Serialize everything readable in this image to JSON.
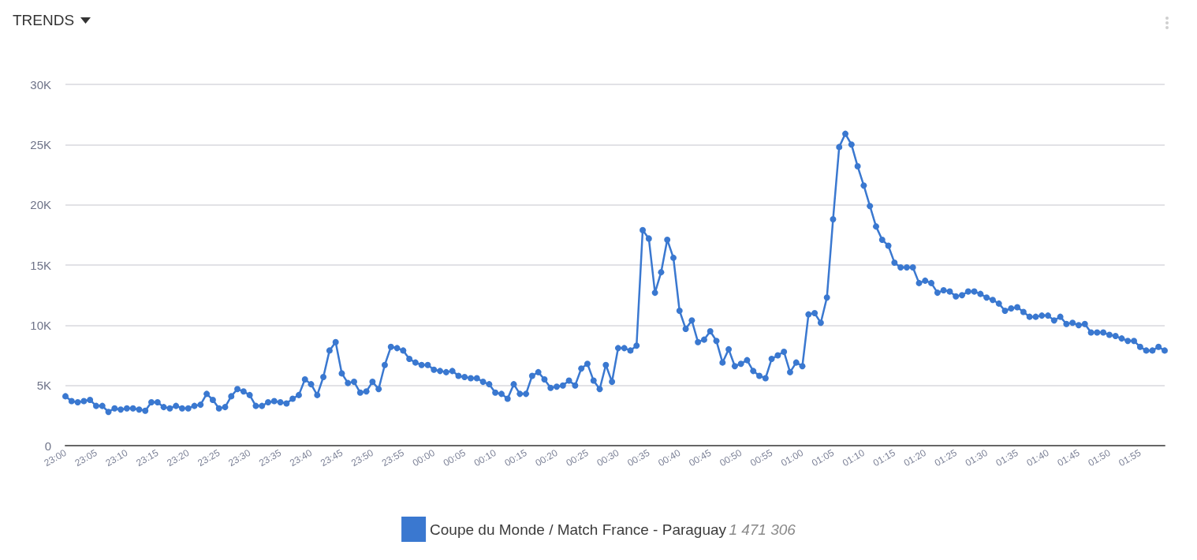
{
  "chart_data": {
    "type": "line",
    "title": "TRENDS",
    "categories": [
      "23:00",
      null,
      null,
      null,
      null,
      "23:05",
      null,
      null,
      null,
      null,
      "23:10",
      null,
      null,
      null,
      null,
      "23:15",
      null,
      null,
      null,
      null,
      "23:20",
      null,
      null,
      null,
      null,
      "23:25",
      null,
      null,
      null,
      null,
      "23:30",
      null,
      null,
      null,
      null,
      "23:35",
      null,
      null,
      null,
      null,
      "23:40",
      null,
      null,
      null,
      null,
      "23:45",
      null,
      null,
      null,
      null,
      "23:50",
      null,
      null,
      null,
      null,
      "23:55",
      null,
      null,
      null,
      null,
      "00:00",
      null,
      null,
      null,
      null,
      "00:05",
      null,
      null,
      null,
      null,
      "00:10",
      null,
      null,
      null,
      null,
      "00:15",
      null,
      null,
      null,
      null,
      "00:20",
      null,
      null,
      null,
      null,
      "00:25",
      null,
      null,
      null,
      null,
      "00:30",
      null,
      null,
      null,
      null,
      "00:35",
      null,
      null,
      null,
      null,
      "00:40",
      null,
      null,
      null,
      null,
      "00:45",
      null,
      null,
      null,
      null,
      "00:50",
      null,
      null,
      null,
      null,
      "00:55",
      null,
      null,
      null,
      null,
      "01:00",
      null,
      null,
      null,
      null,
      "01:05",
      null,
      null,
      null,
      null,
      "01:10",
      null,
      null,
      null,
      null,
      "01:15",
      null,
      null,
      null,
      null,
      "01:20",
      null,
      null,
      null,
      null,
      "01:25",
      null,
      null,
      null,
      null,
      "01:30",
      null,
      null,
      null,
      null,
      "01:35",
      null,
      null,
      null,
      null,
      "01:40",
      null,
      null,
      null,
      null,
      "01:45",
      null,
      null,
      null,
      null,
      "01:50",
      null,
      null,
      null,
      null,
      "01:55",
      null,
      null,
      null,
      null
    ],
    "series": [
      {
        "name": "Coupe du Monde / Match France - Paraguay",
        "color": "#3a78d0",
        "values": [
          4100,
          3700,
          3600,
          3700,
          3800,
          3300,
          3300,
          2800,
          3100,
          3000,
          3100,
          3100,
          3000,
          2900,
          3600,
          3600,
          3200,
          3100,
          3300,
          3100,
          3100,
          3300,
          3400,
          4300,
          3800,
          3100,
          3200,
          4100,
          4700,
          4500,
          4200,
          3300,
          3300,
          3600,
          3700,
          3600,
          3500,
          3900,
          4200,
          5500,
          5100,
          4200,
          5700,
          7900,
          8600,
          6000,
          5200,
          5300,
          4400,
          4500,
          5300,
          4700,
          6700,
          8200,
          8100,
          7900,
          7200,
          6900,
          6700,
          6700,
          6300,
          6200,
          6100,
          6200,
          5800,
          5700,
          5600,
          5600,
          5300,
          5100,
          4400,
          4300,
          3900,
          5100,
          4300,
          4300,
          5800,
          6100,
          5500,
          4800,
          4900,
          5000,
          5400,
          5000,
          6400,
          6800,
          5400,
          4700,
          6700,
          5300,
          8100,
          8100,
          7900,
          8300,
          17900,
          17200,
          12700,
          14400,
          17100,
          15600,
          11200,
          9700,
          10400,
          8600,
          8800,
          9500,
          8700,
          6900,
          8000,
          6600,
          6800,
          7100,
          6200,
          5800,
          5600,
          7200,
          7500,
          7800,
          6100,
          6900,
          6600,
          10900,
          11000,
          10200,
          12300,
          18800,
          24800,
          25900,
          25000,
          23200,
          21600,
          19900,
          18200,
          17100,
          16600,
          15200,
          14800,
          14800,
          14800,
          13500,
          13700,
          13500,
          12700,
          12900,
          12800,
          12400,
          12500,
          12800,
          12800,
          12600,
          12300,
          12100,
          11800,
          11200,
          11400,
          11500,
          11100,
          10700,
          10700,
          10800,
          10800,
          10400,
          10700,
          10100,
          10200,
          10000,
          10100,
          9400,
          9400,
          9400,
          9200,
          9100,
          8900,
          8700,
          8700,
          8200,
          7900,
          7900,
          8200,
          7900
        ]
      }
    ],
    "ylim": [
      0,
      30000
    ],
    "yticks": [
      {
        "value": 0,
        "label": "0"
      },
      {
        "value": 5000,
        "label": "5K"
      },
      {
        "value": 10000,
        "label": "10K"
      },
      {
        "value": 15000,
        "label": "15K"
      },
      {
        "value": 20000,
        "label": "20K"
      },
      {
        "value": 25000,
        "label": "25K"
      },
      {
        "value": 30000,
        "label": "30K"
      }
    ],
    "grid": "y",
    "legend": "bottom",
    "marker": "circle",
    "line_style": "solid",
    "annotations": [
      "1 471 306"
    ]
  }
}
